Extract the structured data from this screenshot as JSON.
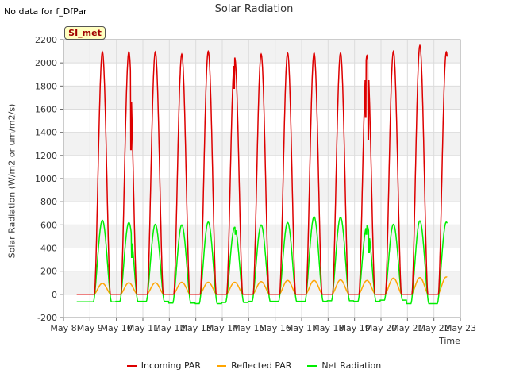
{
  "header": {
    "nodata_text": "No data for f_DfPar",
    "site_badge": "SI_met"
  },
  "chart_data": {
    "type": "line",
    "title": "Solar Radiation",
    "xlabel": "Time",
    "ylabel": "Solar Radiation (W/m2 or um/m2/s)",
    "ylim": [
      -200,
      2200
    ],
    "yticks": [
      -200,
      0,
      200,
      400,
      600,
      800,
      1000,
      1200,
      1400,
      1600,
      1800,
      2000,
      2200
    ],
    "xlim": [
      8,
      23
    ],
    "xticks": [
      8,
      9,
      10,
      11,
      12,
      13,
      14,
      15,
      16,
      17,
      18,
      19,
      20,
      21,
      22,
      23
    ],
    "xtick_labels": [
      "May 8",
      "May 9",
      "May 10",
      "May 11",
      "May 12",
      "May 13",
      "May 14",
      "May 15",
      "May 16",
      "May 17",
      "May 18",
      "May 19",
      "May 20",
      "May 21",
      "May 22",
      "May 23"
    ],
    "grid": true,
    "legend_position": "bottom",
    "x_start": 8.5,
    "x_end": 22.5,
    "day_centers": [
      9.47,
      10.47,
      11.47,
      12.47,
      13.47,
      14.47,
      15.47,
      16.47,
      17.47,
      18.47,
      19.47,
      20.47,
      21.47,
      22.47
    ],
    "series": [
      {
        "name": "Incoming PAR",
        "color": "#dd0000",
        "daily_peak": [
          2095,
          2095,
          2095,
          2075,
          2100,
          2045,
          2075,
          2085,
          2085,
          2085,
          2065,
          2100,
          2150,
          2095
        ],
        "daily_min": [
          0,
          0,
          0,
          0,
          0,
          0,
          0,
          0,
          0,
          0,
          0,
          0,
          0,
          0
        ]
      },
      {
        "name": "Reflected PAR",
        "color": "#ffa500",
        "daily_peak": [
          95,
          100,
          100,
          105,
          105,
          105,
          110,
          120,
          120,
          125,
          120,
          140,
          145,
          150
        ],
        "daily_min": [
          0,
          0,
          0,
          0,
          0,
          0,
          0,
          0,
          0,
          0,
          0,
          0,
          0,
          0
        ]
      },
      {
        "name": "Net Radiation",
        "color": "#00ee00",
        "daily_peak": [
          640,
          620,
          605,
          600,
          625,
          580,
          600,
          620,
          670,
          665,
          590,
          605,
          635,
          625
        ],
        "daily_min": [
          -65,
          -60,
          -60,
          -75,
          -80,
          -70,
          -60,
          -60,
          -60,
          -55,
          -60,
          -50,
          -80,
          -80
        ]
      }
    ],
    "dips": {
      "Incoming PAR": [
        [
          10.55,
          1250
        ],
        [
          12.4,
          1900
        ],
        [
          14.45,
          1780
        ],
        [
          19.42,
          1530
        ],
        [
          19.52,
          1340
        ]
      ],
      "Net Radiation": [
        [
          10.58,
          320
        ],
        [
          14.5,
          520
        ],
        [
          19.45,
          520
        ],
        [
          19.55,
          360
        ]
      ]
    }
  }
}
